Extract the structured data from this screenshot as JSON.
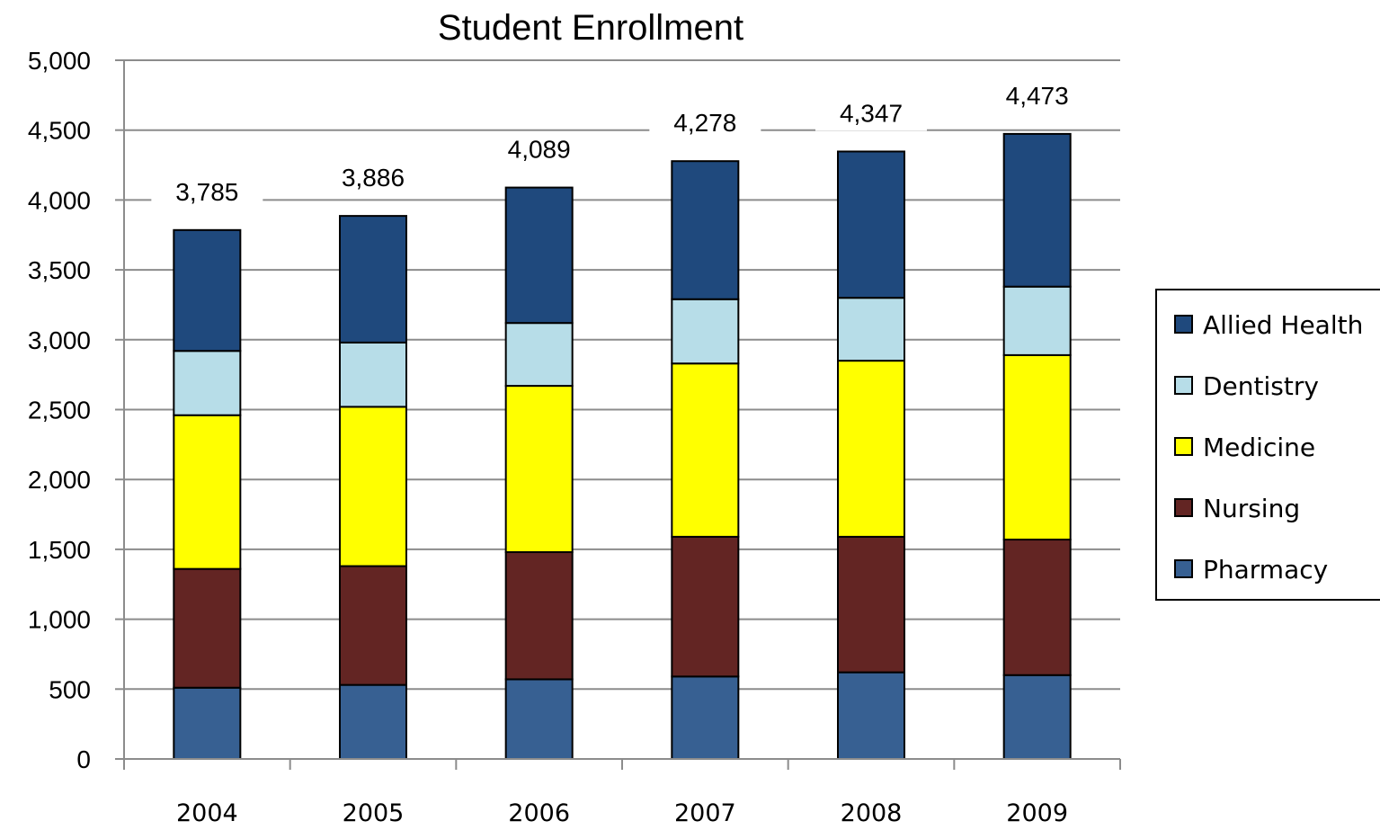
{
  "chart_data": {
    "type": "bar",
    "stacked": true,
    "title": "Student Enrollment",
    "xlabel": "",
    "ylabel": "",
    "ylim": [
      0,
      5000
    ],
    "yticks": [
      "0",
      "500",
      "1,000",
      "1,500",
      "2,000",
      "2,500",
      "3,000",
      "3,500",
      "4,000",
      "4,500",
      "5,000"
    ],
    "grid": true,
    "legend_position": "right",
    "categories": [
      "2004",
      "2005",
      "2006",
      "2007",
      "2008",
      "2009"
    ],
    "series": [
      {
        "name": "Pharmacy",
        "color": "#376092",
        "values": [
          510,
          530,
          570,
          590,
          620,
          600
        ]
      },
      {
        "name": "Nursing",
        "color": "#632523",
        "values": [
          850,
          850,
          910,
          1000,
          970,
          970
        ]
      },
      {
        "name": "Medicine",
        "color": "#ffff00",
        "values": [
          1100,
          1140,
          1190,
          1240,
          1260,
          1320
        ]
      },
      {
        "name": "Dentistry",
        "color": "#b7dde8",
        "values": [
          460,
          460,
          450,
          460,
          450,
          490
        ]
      },
      {
        "name": "Allied Health",
        "color": "#1f497d",
        "values": [
          865,
          906,
          969,
          988,
          1047,
          1093
        ]
      }
    ],
    "legend_order": [
      "Allied Health",
      "Dentistry",
      "Medicine",
      "Nursing",
      "Pharmacy"
    ],
    "totals": [
      "3,785",
      "3,886",
      "4,089",
      "4,278",
      "4,347",
      "4,473"
    ]
  }
}
